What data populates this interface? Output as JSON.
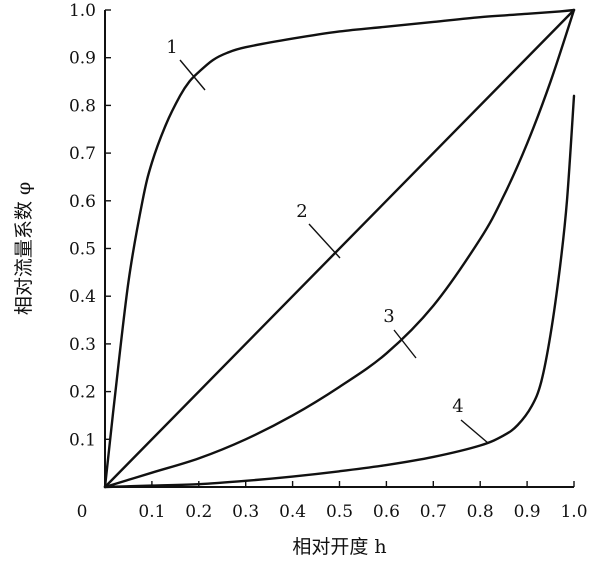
{
  "chart_data": {
    "type": "line",
    "title": "",
    "xlabel": "相对开度 h",
    "ylabel": "相对流量系数 φ",
    "xlim": [
      0,
      1.0
    ],
    "ylim": [
      0,
      1.0
    ],
    "xticks": [
      "0",
      "0.1",
      "0.2",
      "0.3",
      "0.4",
      "0.5",
      "0.6",
      "0.7",
      "0.8",
      "0.9",
      "1.0"
    ],
    "yticks": [
      "0.1",
      "0.2",
      "0.3",
      "0.4",
      "0.5",
      "0.6",
      "0.7",
      "0.8",
      "0.9",
      "1.0"
    ],
    "grid": false,
    "legend": "inline curve labels",
    "series": [
      {
        "label": "1",
        "x": [
          0,
          0.02,
          0.05,
          0.08,
          0.1,
          0.13,
          0.16,
          0.18,
          0.2,
          0.23,
          0.26,
          0.3,
          0.4,
          0.5,
          0.6,
          0.7,
          0.8,
          0.9,
          0.97,
          1.0
        ],
        "y": [
          0,
          0.18,
          0.43,
          0.6,
          0.68,
          0.76,
          0.82,
          0.85,
          0.87,
          0.895,
          0.91,
          0.922,
          0.94,
          0.955,
          0.965,
          0.975,
          0.985,
          0.992,
          0.997,
          1.0
        ]
      },
      {
        "label": "2",
        "x": [
          0,
          1.0
        ],
        "y": [
          0,
          1.0
        ]
      },
      {
        "label": "3",
        "x": [
          0,
          0.1,
          0.2,
          0.3,
          0.4,
          0.5,
          0.6,
          0.7,
          0.8,
          0.85,
          0.9,
          0.95,
          1.0
        ],
        "y": [
          0,
          0.03,
          0.06,
          0.1,
          0.15,
          0.21,
          0.28,
          0.38,
          0.52,
          0.61,
          0.72,
          0.85,
          1.0
        ]
      },
      {
        "label": "4",
        "x": [
          0,
          0.1,
          0.2,
          0.3,
          0.4,
          0.5,
          0.6,
          0.7,
          0.8,
          0.85,
          0.88,
          0.91,
          0.93,
          0.95,
          0.97,
          0.985,
          1.0
        ],
        "y": [
          0,
          0.003,
          0.006,
          0.013,
          0.022,
          0.033,
          0.046,
          0.063,
          0.087,
          0.108,
          0.13,
          0.17,
          0.22,
          0.32,
          0.46,
          0.6,
          0.82
        ]
      }
    ]
  }
}
